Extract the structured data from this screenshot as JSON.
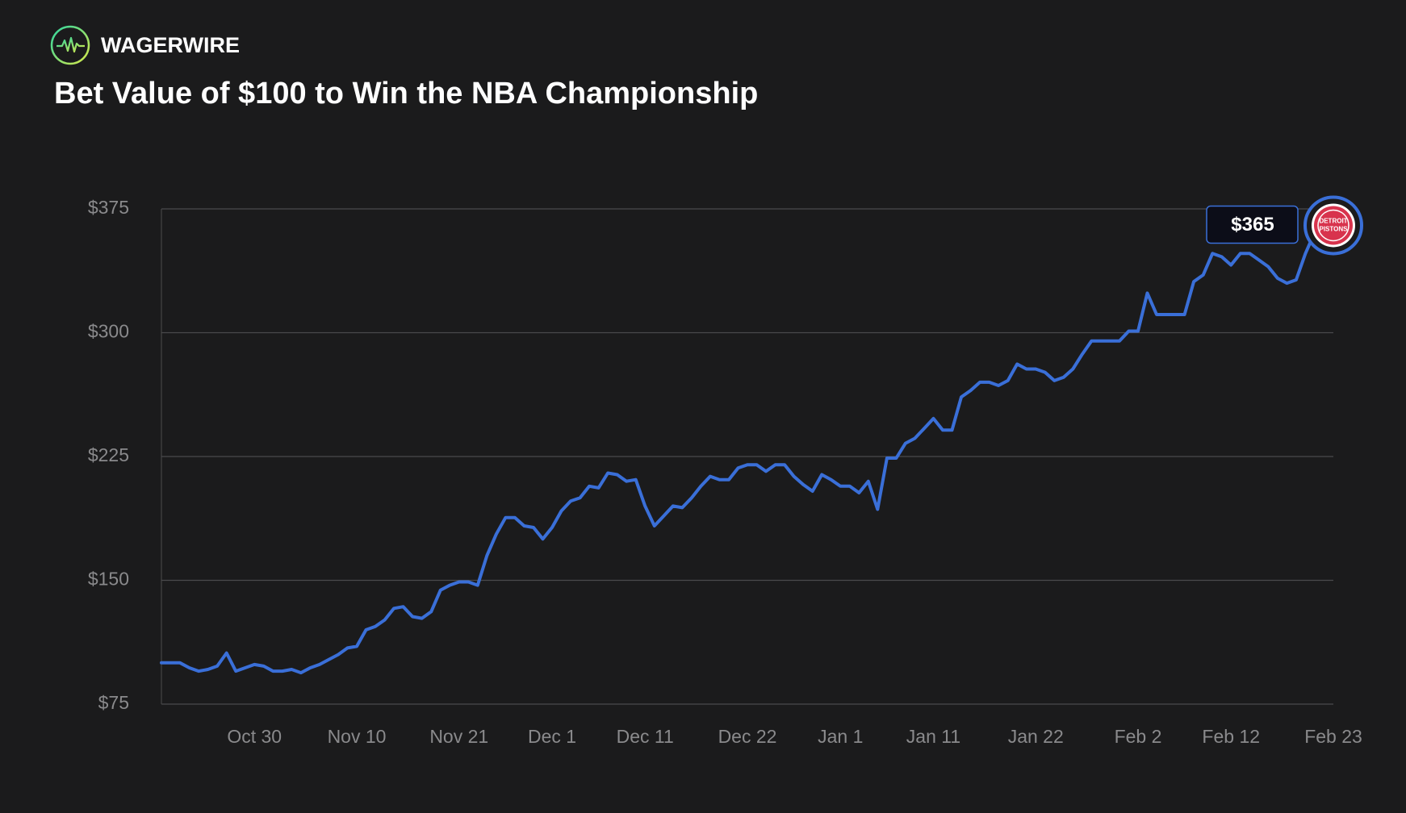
{
  "brand": "WAGERWIRE",
  "chart_data": {
    "type": "line",
    "title": "Bet Value of $100 to Win the NBA Championship",
    "categories": [
      null,
      null,
      null,
      null,
      null,
      null,
      null,
      null,
      null,
      null,
      "Oct 30",
      null,
      null,
      null,
      null,
      null,
      null,
      null,
      null,
      null,
      null,
      "Nov 10",
      null,
      null,
      null,
      null,
      null,
      null,
      null,
      null,
      null,
      null,
      "Nov 21",
      null,
      null,
      null,
      null,
      null,
      null,
      null,
      null,
      null,
      "Dec 1",
      null,
      null,
      null,
      null,
      null,
      null,
      null,
      null,
      null,
      "Dec 11",
      null,
      null,
      null,
      null,
      null,
      null,
      null,
      null,
      null,
      null,
      "Dec 22",
      null,
      null,
      null,
      null,
      null,
      null,
      null,
      null,
      null,
      "Jan 1",
      null,
      null,
      null,
      null,
      null,
      null,
      null,
      null,
      null,
      "Jan 11",
      null,
      null,
      null,
      null,
      null,
      null,
      null,
      null,
      null,
      null,
      "Jan 22",
      null,
      null,
      null,
      null,
      null,
      null,
      null,
      null,
      null,
      null,
      "Feb 2",
      null,
      null,
      null,
      null,
      null,
      null,
      null,
      null,
      null,
      "Feb 12",
      null,
      null,
      null,
      null,
      null,
      null,
      null,
      null,
      null,
      null,
      "Feb 23"
    ],
    "series": [
      {
        "name": "Detroit Pistons",
        "color": "#3a6fd8",
        "values": [
          100,
          100,
          100,
          97,
          95,
          96,
          98,
          106,
          95,
          97,
          99,
          98,
          95,
          95,
          96,
          94,
          97,
          99,
          102,
          105,
          109,
          110,
          120,
          122,
          126,
          133,
          134,
          128,
          127,
          131,
          144,
          147,
          149,
          149,
          147,
          165,
          178,
          188,
          188,
          183,
          182,
          175,
          182,
          192,
          198,
          200,
          207,
          206,
          215,
          214,
          210,
          211,
          195,
          183,
          189,
          195,
          194,
          200,
          207,
          213,
          211,
          211,
          218,
          220,
          220,
          216,
          220,
          220,
          213,
          208,
          204,
          214,
          211,
          207,
          207,
          203,
          210,
          193,
          224,
          224,
          233,
          236,
          242,
          248,
          241,
          241,
          261,
          265,
          270,
          270,
          268,
          271,
          281,
          278,
          278,
          276,
          271,
          273,
          278,
          287,
          295,
          295,
          295,
          295,
          301,
          301,
          324,
          311,
          311,
          311,
          311,
          331,
          335,
          348,
          346,
          341,
          348,
          348,
          344,
          340,
          333,
          330,
          332,
          348,
          361,
          364,
          365
        ],
        "value_labels": [
          null,
          null,
          null,
          null,
          null,
          null,
          null,
          null,
          null,
          null,
          null,
          null,
          null,
          null,
          null,
          null,
          null,
          null,
          null,
          null,
          null,
          null,
          null,
          null,
          null,
          null,
          null,
          null,
          null,
          null,
          null,
          null,
          null,
          null,
          null,
          null,
          null,
          null,
          null,
          null,
          null,
          null,
          null,
          null,
          null,
          null,
          null,
          null,
          null,
          null,
          null,
          null,
          null,
          null,
          null,
          null,
          null,
          null,
          null,
          null,
          null,
          null,
          null,
          null,
          null,
          null,
          null,
          null,
          null,
          null,
          null,
          null,
          null,
          null,
          null,
          null,
          null,
          null,
          null,
          null,
          null,
          null,
          null,
          null,
          null,
          null,
          null,
          null,
          null,
          null,
          null,
          null,
          null,
          null,
          null,
          null,
          null,
          null,
          null,
          null,
          null,
          null,
          null,
          null,
          null,
          null,
          null,
          null,
          null,
          null,
          null,
          null,
          null,
          null,
          null,
          null,
          null,
          null,
          null,
          null,
          null,
          null,
          null,
          null,
          null,
          null,
          "$365"
        ],
        "badge": [
          "DETROIT",
          "PISTONS"
        ]
      }
    ],
    "ylim": [
      75,
      375
    ],
    "yticks": [
      {
        "value": 75,
        "label": "$75"
      },
      {
        "value": 150,
        "label": "$150"
      },
      {
        "value": 225,
        "label": "$225"
      },
      {
        "value": 300,
        "label": "$300"
      },
      {
        "value": 375,
        "label": "$375"
      }
    ],
    "grid": true
  }
}
